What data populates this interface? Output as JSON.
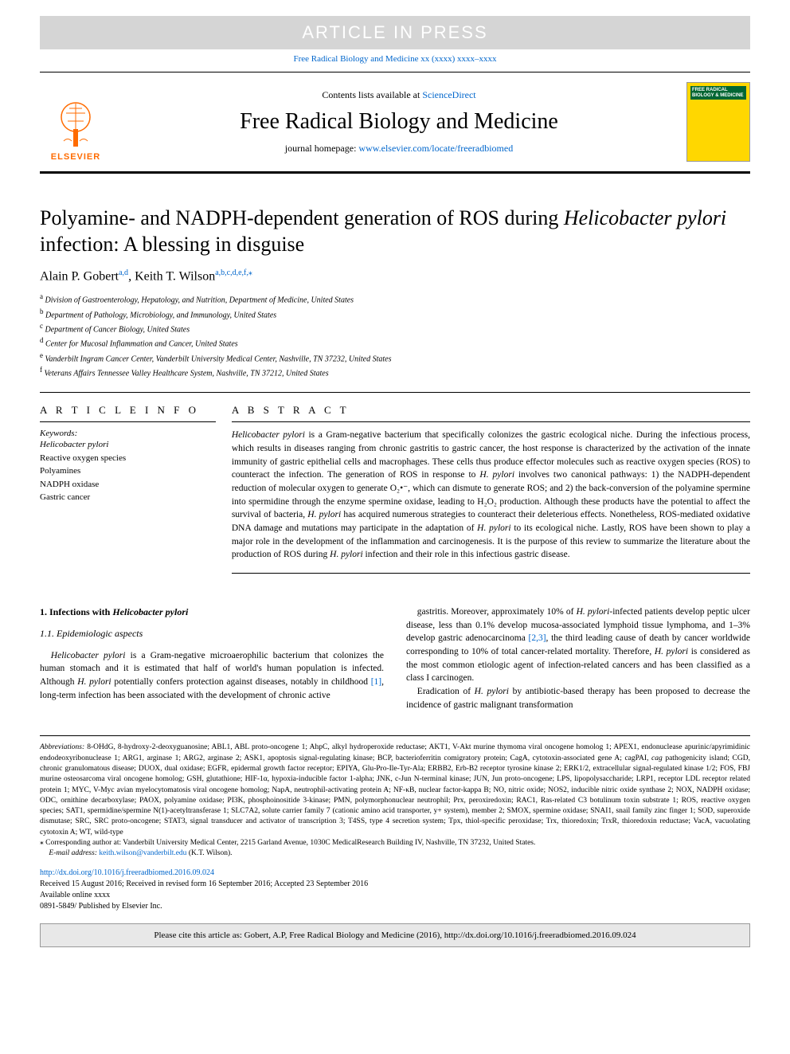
{
  "banner": {
    "article_in_press": "ARTICLE IN PRESS",
    "journal_ref": "Free Radical Biology and Medicine xx (xxxx) xxxx–xxxx"
  },
  "header": {
    "logo_text": "ELSEVIER",
    "contents_prefix": "Contents lists available at ",
    "contents_link": "ScienceDirect",
    "journal_name": "Free Radical Biology and Medicine",
    "homepage_prefix": "journal homepage: ",
    "homepage_url": "www.elsevier.com/locate/freeradbiomed",
    "cover_text": "FREE RADICAL BIOLOGY & MEDICINE"
  },
  "title": "Polyamine- and NADPH-dependent generation of ROS during <em>Helicobacter pylori</em> infection: A blessing in disguise",
  "authors_html": "Alain P. Gobert<sup>a,d</sup>, Keith T. Wilson<sup>a,b,c,d,e,f,</sup><sup>⁎</sup>",
  "affiliations": [
    "a Division of Gastroenterology, Hepatology, and Nutrition, Department of Medicine, United States",
    "b Department of Pathology, Microbiology, and Immunology, United States",
    "c Department of Cancer Biology, United States",
    "d Center for Mucosal Inflammation and Cancer, United States",
    "e Vanderbilt Ingram Cancer Center, Vanderbilt University Medical Center, Nashville, TN 37232, United States",
    "f Veterans Affairs Tennessee Valley Healthcare System, Nashville, TN 37212, United States"
  ],
  "info": {
    "heading": "A R T I C L E  I N F O",
    "keywords_label": "Keywords:",
    "keywords": [
      "<em>Helicobacter pylori</em>",
      "Reactive oxygen species",
      "Polyamines",
      "NADPH oxidase",
      "Gastric cancer"
    ]
  },
  "abstract": {
    "heading": "A B S T R A C T",
    "text": "<em>Helicobacter pylori</em> is a Gram-negative bacterium that specifically colonizes the gastric ecological niche. During the infectious process, which results in diseases ranging from chronic gastritis to gastric cancer, the host response is characterized by the activation of the innate immunity of gastric epithelial cells and macrophages. These cells thus produce effector molecules such as reactive oxygen species (ROS) to counteract the infection. The generation of ROS in response to <em>H. pylori</em> involves two canonical pathways: 1) the NADPH-dependent reduction of molecular oxygen to generate O₂•⁻, which can dismute to generate ROS; and 2) the back-conversion of the polyamine spermine into spermidine through the enzyme spermine oxidase, leading to H₂O₂ production. Although these products have the potential to affect the survival of bacteria, <em>H. pylori</em> has acquired numerous strategies to counteract their deleterious effects. Nonetheless, ROS-mediated oxidative DNA damage and mutations may participate in the adaptation of <em>H. pylori</em> to its ecological niche. Lastly, ROS have been shown to play a major role in the development of the inflammation and carcinogenesis. It is the purpose of this review to summarize the literature about the production of ROS during <em>H. pylori</em> infection and their role in this infectious gastric disease."
  },
  "sections": {
    "s1_heading": "1. Infections with <em>Helicobacter pylori</em>",
    "s11_heading": "1.1. Epidemiologic aspects",
    "p1": "<em>Helicobacter pylori</em> is a Gram-negative microaerophilic bacterium that colonizes the human stomach and it is estimated that half of world's human population is infected. Although <em>H. pylori</em> potentially confers protection against diseases, notably in childhood <span class=\"cite\">[1]</span>, long-term infection has been associated with the development of chronic active",
    "p2": "gastritis. Moreover, approximately 10% of <em>H. pylori</em>-infected patients develop peptic ulcer disease, less than 0.1% develop mucosa-associated lymphoid tissue lymphoma, and 1–3% develop gastric adenocarcinoma <span class=\"cite\">[2,3]</span>, the third leading cause of death by cancer worldwide corresponding to 10% of total cancer-related mortality. Therefore, <em>H. pylori</em> is considered as the most common etiologic agent of infection-related cancers and has been classified as a class I carcinogen.",
    "p3": "Eradication of <em>H. pylori</em> by antibiotic-based therapy has been proposed to decrease the incidence of gastric malignant transformation"
  },
  "footnotes": {
    "abbrev_label": "Abbreviations:",
    "abbrev_text": " 8-OHdG, 8-hydroxy-2-deoxyguanosine; ABL1, ABL proto-oncogene 1; AhpC, alkyl hydroperoxide reductase; AKT1, V-Akt murine thymoma viral oncogene homolog 1; APEX1, endonuclease apurinic/apyrimidinic endodeoxyribonuclease 1; ARG1, arginase 1; ARG2, arginase 2; ASK1, apoptosis signal-regulating kinase; BCP, bacterioferritin comigratory protein; CagA, cytotoxin-associated gene A; cagPAI, <em>cag</em> pathogenicity island; CGD, chronic granulomatous disease; DUOX, dual oxidase; EGFR, epidermal growth factor receptor; EPIYA, Glu-Pro-Ile-Tyr-Ala; ERBB2, Erb-B2 receptor tyrosine kinase 2; ERK1/2, extracellular signal-regulated kinase 1/2; FOS, FBJ murine osteosarcoma viral oncogene homolog; GSH, glutathione; HIF-1α, hypoxia-inducible factor 1-alpha; JNK, c-Jun N-terminal kinase; JUN, Jun proto-oncogene; LPS, lipopolysaccharide; LRP1, receptor LDL receptor related protein 1; MYC, V-Myc avian myelocytomatosis viral oncogene homolog; NapA, neutrophil-activating protein A; NF-κB, nuclear factor-kappa B; NO, nitric oxide; NOS2, inducible nitric oxide synthase 2; NOX, NADPH oxidase; ODC, ornithine decarboxylase; PAOX, polyamine oxidase; PI3K, phosphoinositide 3-kinase; PMN, polymorphonuclear neutrophil; Prx, peroxiredoxin; RAC1, Ras-related C3 botulinum toxin substrate 1; ROS, reactive oxygen species; SAT1, spermidine/spermine N(1)-acetyltransferase 1; SLC7A2, solute carrier family 7 (cationic amino acid transporter, y+ system), member 2; SMOX, spermine oxidase; SNAI1, snail family zinc finger 1; SOD, superoxide dismutase; SRC, SRC proto-oncogene; STAT3, signal transducer and activator of transcription 3; T4SS, type 4 secretion system; Tpx, thiol-specific peroxidase; Trx, thioredoxin; TrxR, thioredoxin reductase; VacA, vacuolating cytotoxin A; WT, wild-type",
    "corr_marker": "⁎",
    "corr_text": " Corresponding author at: Vanderbilt University Medical Center, 2215 Garland Avenue, 1030C MedicalResearch Building IV, Nashville, TN 37232, United States.",
    "email_label": "E-mail address: ",
    "email": "keith.wilson@vanderbilt.edu",
    "email_suffix": " (K.T. Wilson)."
  },
  "doi": {
    "url": "http://dx.doi.org/10.1016/j.freeradbiomed.2016.09.024",
    "received": "Received 15 August 2016; Received in revised form 16 September 2016; Accepted 23 September 2016",
    "available": "Available online xxxx",
    "copyright": "0891-5849/ Published by Elsevier Inc."
  },
  "citebox": "Please cite this article as: Gobert, A.P, Free Radical Biology and Medicine (2016), http://dx.doi.org/10.1016/j.freeradbiomed.2016.09.024",
  "colors": {
    "link": "#0066cc",
    "banner_bg": "#d5d5d5",
    "elsevier_orange": "#ff6b00",
    "cover_yellow": "#ffd700",
    "cover_green": "#006633",
    "cite_box_bg": "#e8e8e8"
  }
}
